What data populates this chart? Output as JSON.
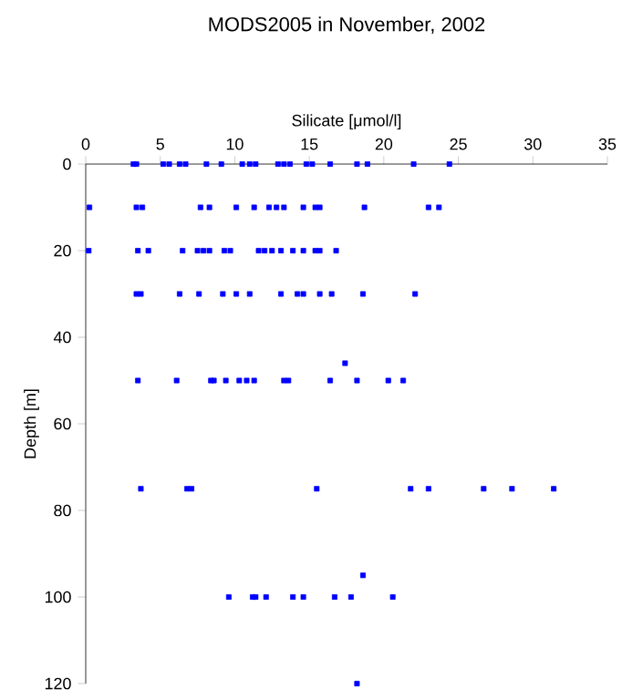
{
  "chart_data": {
    "type": "scatter",
    "title": "MODS2005 in November, 2002",
    "xlabel": "Silicate [μmol/l]",
    "ylabel": "Depth [m]",
    "xlim": [
      0,
      35
    ],
    "xticks": [
      0,
      5,
      10,
      15,
      20,
      25,
      30,
      35
    ],
    "ylim": [
      120,
      0
    ],
    "yticks": [
      0,
      20,
      40,
      60,
      80,
      100,
      120
    ],
    "marker": "square",
    "series": [
      {
        "color": "#0000ff",
        "x": [
          3.2,
          3.4,
          5.2,
          5.6,
          6.3,
          6.7,
          8.1,
          9.1,
          10.5,
          11.0,
          11.4,
          12.9,
          13.3,
          13.7,
          14.8,
          15.2,
          16.4,
          18.2,
          18.9,
          22.0,
          24.4,
          0.25,
          3.4,
          3.8,
          7.7,
          8.3,
          10.1,
          11.3,
          12.3,
          12.8,
          13.3,
          14.6,
          15.4,
          15.7,
          18.7,
          23.0,
          23.7,
          0.2,
          3.5,
          4.2,
          6.5,
          7.5,
          7.9,
          8.3,
          9.3,
          9.7,
          11.6,
          12.0,
          12.5,
          13.1,
          13.9,
          14.6,
          15.4,
          15.7,
          16.8,
          3.4,
          3.7,
          6.3,
          7.6,
          9.2,
          10.1,
          11.0,
          13.1,
          14.2,
          14.6,
          15.7,
          16.5,
          18.6,
          22.1,
          3.5,
          6.1,
          8.4,
          8.6,
          9.4,
          10.3,
          10.8,
          11.3,
          13.3,
          13.6,
          16.4,
          18.2,
          20.3,
          21.3,
          17.4,
          3.7,
          6.8,
          7.1,
          15.5,
          21.8,
          23.0,
          26.7,
          28.6,
          31.4,
          9.6,
          11.2,
          11.4,
          12.1,
          13.9,
          14.6,
          16.7,
          17.8,
          20.6,
          18.6,
          18.2
        ],
        "values": [
          0,
          0,
          0,
          0,
          0,
          0,
          0,
          0,
          0,
          0,
          0,
          0,
          0,
          0,
          0,
          0,
          0,
          0,
          0,
          0,
          0,
          10,
          10,
          10,
          10,
          10,
          10,
          10,
          10,
          10,
          10,
          10,
          10,
          10,
          10,
          10,
          10,
          20,
          20,
          20,
          20,
          20,
          20,
          20,
          20,
          20,
          20,
          20,
          20,
          20,
          20,
          20,
          20,
          20,
          20,
          30,
          30,
          30,
          30,
          30,
          30,
          30,
          30,
          30,
          30,
          30,
          30,
          30,
          30,
          50,
          50,
          50,
          50,
          50,
          50,
          50,
          50,
          50,
          50,
          50,
          50,
          50,
          50,
          46,
          75,
          75,
          75,
          75,
          75,
          75,
          75,
          75,
          75,
          100,
          100,
          100,
          100,
          100,
          100,
          100,
          100,
          100,
          95,
          120
        ]
      }
    ]
  }
}
